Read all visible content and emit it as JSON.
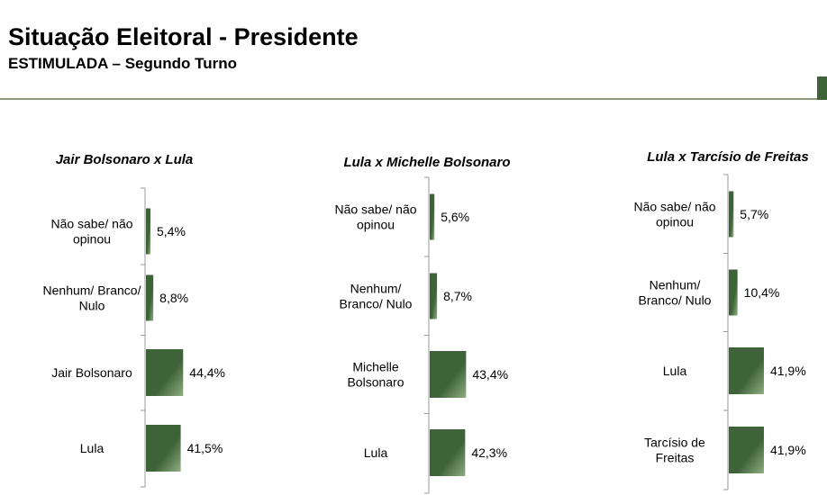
{
  "header": {
    "title": "Situação Eleitoral - Presidente",
    "subtitle": "ESTIMULADA – Segundo Turno"
  },
  "colors": {
    "bar_dark": "#3f6338",
    "bar_light": "#8fae82",
    "accent": "#3f6338",
    "rule": "#8a9a78"
  },
  "chart_data": [
    {
      "type": "bar",
      "orientation": "horizontal",
      "title": "Jair Bolsonaro x Lula",
      "categories": [
        [
          "Não sabe/ não",
          "opinou"
        ],
        [
          "Nenhum/ Branco/",
          "Nulo"
        ],
        [
          "Jair Bolsonaro"
        ],
        [
          "Lula"
        ]
      ],
      "values": [
        5.4,
        8.8,
        44.4,
        41.5
      ],
      "labels": [
        "5,4%",
        "8,8%",
        "44,4%",
        "41,5%"
      ]
    },
    {
      "type": "bar",
      "orientation": "horizontal",
      "title": "Lula x Michelle Bolsonaro",
      "categories": [
        [
          "Não sabe/ não",
          "opinou"
        ],
        [
          "Nenhum/",
          "Branco/ Nulo"
        ],
        [
          "Michelle",
          "Bolsonaro"
        ],
        [
          "Lula"
        ]
      ],
      "values": [
        5.6,
        8.7,
        43.4,
        42.3
      ],
      "labels": [
        "5,6%",
        "8,7%",
        "43,4%",
        "42,3%"
      ]
    },
    {
      "type": "bar",
      "orientation": "horizontal",
      "title": "Lula x Tarcísio de Freitas",
      "categories": [
        [
          "Não sabe/ não",
          "opinou"
        ],
        [
          "Nenhum/",
          "Branco/ Nulo"
        ],
        [
          "Lula"
        ],
        [
          "Tarcísio de",
          "Freitas"
        ]
      ],
      "values": [
        5.7,
        10.4,
        41.9,
        41.9
      ],
      "labels": [
        "5,7%",
        "10,4%",
        "41,9%",
        "41,9%"
      ]
    }
  ]
}
